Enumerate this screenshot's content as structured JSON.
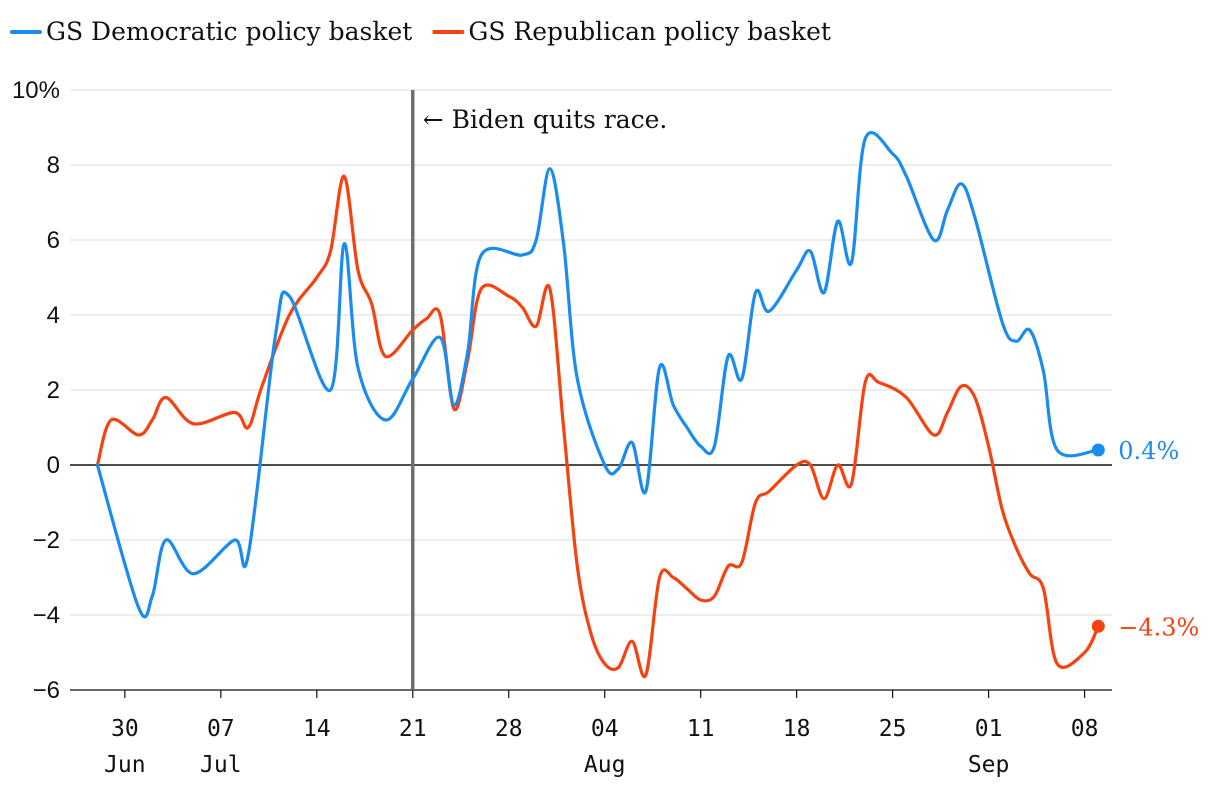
{
  "chart_data": {
    "type": "line",
    "title": "",
    "xlabel": "",
    "ylabel": "",
    "ylim": [
      -6,
      10
    ],
    "grid": true,
    "legend_placement": "top-left",
    "y_ticks": [
      {
        "value": 10,
        "label": "10%"
      },
      {
        "value": 8,
        "label": "8"
      },
      {
        "value": 6,
        "label": "6"
      },
      {
        "value": 4,
        "label": "4"
      },
      {
        "value": 2,
        "label": "2"
      },
      {
        "value": 0,
        "label": "0"
      },
      {
        "value": -2,
        "label": "−2"
      },
      {
        "value": -4,
        "label": "−4"
      },
      {
        "value": -6,
        "label": "−6"
      }
    ],
    "x_ticks": [
      {
        "date": "2024-06-30",
        "label": "30",
        "sublabel": "Jun"
      },
      {
        "date": "2024-07-07",
        "label": "07",
        "sublabel": "Jul"
      },
      {
        "date": "2024-07-14",
        "label": "14",
        "sublabel": ""
      },
      {
        "date": "2024-07-21",
        "label": "21",
        "sublabel": ""
      },
      {
        "date": "2024-07-28",
        "label": "28",
        "sublabel": ""
      },
      {
        "date": "2024-08-04",
        "label": "04",
        "sublabel": "Aug"
      },
      {
        "date": "2024-08-11",
        "label": "11",
        "sublabel": ""
      },
      {
        "date": "2024-08-18",
        "label": "18",
        "sublabel": ""
      },
      {
        "date": "2024-08-25",
        "label": "25",
        "sublabel": ""
      },
      {
        "date": "2024-09-01",
        "label": "01",
        "sublabel": "Sep"
      },
      {
        "date": "2024-09-08",
        "label": "08",
        "sublabel": ""
      }
    ],
    "x_range": [
      "2024-06-26",
      "2024-09-10"
    ],
    "annotation": {
      "date": "2024-07-21",
      "text": "← Biden quits race."
    },
    "series": [
      {
        "name": "GS Democratic policy basket",
        "color": "#1a8cf0",
        "end_label": "0.4%",
        "points": [
          [
            "2024-06-28",
            0.0
          ],
          [
            "2024-07-01",
            -3.8
          ],
          [
            "2024-07-02",
            -3.5
          ],
          [
            "2024-07-03",
            -2.0
          ],
          [
            "2024-07-05",
            -2.9
          ],
          [
            "2024-07-08",
            -2.0
          ],
          [
            "2024-07-09",
            -2.4
          ],
          [
            "2024-07-11",
            3.5
          ],
          [
            "2024-07-12",
            4.5
          ],
          [
            "2024-07-15",
            2.0
          ],
          [
            "2024-07-16",
            5.9
          ],
          [
            "2024-07-17",
            2.6
          ],
          [
            "2024-07-19",
            1.2
          ],
          [
            "2024-07-21",
            2.3
          ],
          [
            "2024-07-23",
            3.4
          ],
          [
            "2024-07-24",
            1.6
          ],
          [
            "2024-07-25",
            3.0
          ],
          [
            "2024-07-26",
            5.6
          ],
          [
            "2024-07-29",
            5.6
          ],
          [
            "2024-07-30",
            6.0
          ],
          [
            "2024-07-31",
            7.9
          ],
          [
            "2024-08-01",
            5.9
          ],
          [
            "2024-08-02",
            2.3
          ],
          [
            "2024-08-04",
            0.0
          ],
          [
            "2024-08-05",
            -0.1
          ],
          [
            "2024-08-06",
            0.6
          ],
          [
            "2024-08-07",
            -0.7
          ],
          [
            "2024-08-08",
            2.6
          ],
          [
            "2024-08-09",
            1.6
          ],
          [
            "2024-08-10",
            1.0
          ],
          [
            "2024-08-11",
            0.5
          ],
          [
            "2024-08-12",
            0.5
          ],
          [
            "2024-08-13",
            2.9
          ],
          [
            "2024-08-14",
            2.3
          ],
          [
            "2024-08-15",
            4.6
          ],
          [
            "2024-08-16",
            4.1
          ],
          [
            "2024-08-18",
            5.2
          ],
          [
            "2024-08-19",
            5.7
          ],
          [
            "2024-08-20",
            4.6
          ],
          [
            "2024-08-21",
            6.5
          ],
          [
            "2024-08-22",
            5.4
          ],
          [
            "2024-08-23",
            8.7
          ],
          [
            "2024-08-25",
            8.3
          ],
          [
            "2024-08-26",
            7.7
          ],
          [
            "2024-08-28",
            6.0
          ],
          [
            "2024-08-29",
            6.8
          ],
          [
            "2024-08-30",
            7.5
          ],
          [
            "2024-08-31",
            6.6
          ],
          [
            "2024-09-02",
            3.8
          ],
          [
            "2024-09-03",
            3.3
          ],
          [
            "2024-09-04",
            3.6
          ],
          [
            "2024-09-05",
            2.5
          ],
          [
            "2024-09-06",
            0.4
          ],
          [
            "2024-09-09",
            0.4
          ]
        ]
      },
      {
        "name": "GS Republican policy basket",
        "color": "#f5420e",
        "end_label": "−4.3%",
        "points": [
          [
            "2024-06-28",
            0.0
          ],
          [
            "2024-06-29",
            1.2
          ],
          [
            "2024-07-01",
            0.8
          ],
          [
            "2024-07-02",
            1.2
          ],
          [
            "2024-07-03",
            1.8
          ],
          [
            "2024-07-05",
            1.1
          ],
          [
            "2024-07-08",
            1.4
          ],
          [
            "2024-07-09",
            1.0
          ],
          [
            "2024-07-10",
            2.1
          ],
          [
            "2024-07-12",
            4.0
          ],
          [
            "2024-07-14",
            5.0
          ],
          [
            "2024-07-15",
            5.7
          ],
          [
            "2024-07-16",
            7.7
          ],
          [
            "2024-07-17",
            5.2
          ],
          [
            "2024-07-18",
            4.3
          ],
          [
            "2024-07-19",
            2.9
          ],
          [
            "2024-07-21",
            3.6
          ],
          [
            "2024-07-22",
            3.9
          ],
          [
            "2024-07-23",
            4.0
          ],
          [
            "2024-07-24",
            1.5
          ],
          [
            "2024-07-25",
            2.8
          ],
          [
            "2024-07-26",
            4.7
          ],
          [
            "2024-07-28",
            4.5
          ],
          [
            "2024-07-29",
            4.2
          ],
          [
            "2024-07-30",
            3.7
          ],
          [
            "2024-07-31",
            4.7
          ],
          [
            "2024-08-01",
            1.0
          ],
          [
            "2024-08-02",
            -2.7
          ],
          [
            "2024-08-03",
            -4.5
          ],
          [
            "2024-08-04",
            -5.3
          ],
          [
            "2024-08-05",
            -5.4
          ],
          [
            "2024-08-06",
            -4.7
          ],
          [
            "2024-08-07",
            -5.6
          ],
          [
            "2024-08-08",
            -3.0
          ],
          [
            "2024-08-09",
            -3.0
          ],
          [
            "2024-08-10",
            -3.3
          ],
          [
            "2024-08-11",
            -3.6
          ],
          [
            "2024-08-12",
            -3.5
          ],
          [
            "2024-08-13",
            -2.7
          ],
          [
            "2024-08-14",
            -2.6
          ],
          [
            "2024-08-15",
            -1.0
          ],
          [
            "2024-08-16",
            -0.7
          ],
          [
            "2024-08-18",
            0.0
          ],
          [
            "2024-08-19",
            0.0
          ],
          [
            "2024-08-20",
            -0.9
          ],
          [
            "2024-08-21",
            0.0
          ],
          [
            "2024-08-22",
            -0.5
          ],
          [
            "2024-08-23",
            2.2
          ],
          [
            "2024-08-24",
            2.2
          ],
          [
            "2024-08-26",
            1.8
          ],
          [
            "2024-08-28",
            0.8
          ],
          [
            "2024-08-29",
            1.4
          ],
          [
            "2024-08-30",
            2.1
          ],
          [
            "2024-08-31",
            1.8
          ],
          [
            "2024-09-01",
            0.5
          ],
          [
            "2024-09-02",
            -1.2
          ],
          [
            "2024-09-03",
            -2.2
          ],
          [
            "2024-09-04",
            -2.9
          ],
          [
            "2024-09-05",
            -3.3
          ],
          [
            "2024-09-06",
            -5.3
          ],
          [
            "2024-09-08",
            -5.0
          ],
          [
            "2024-09-09",
            -4.3
          ]
        ]
      }
    ]
  }
}
